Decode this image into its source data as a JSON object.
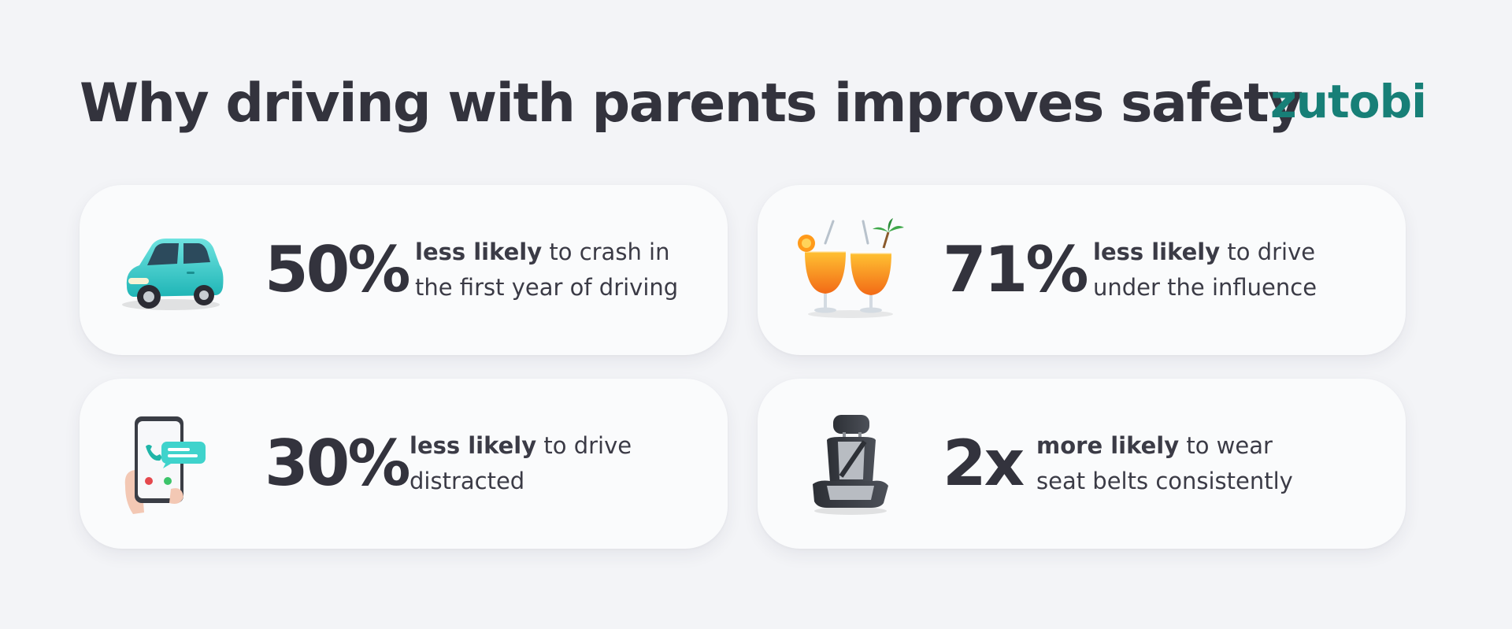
{
  "header": {
    "title": "Why driving with parents improves safety",
    "logo": "zutobi"
  },
  "stats": [
    {
      "icon": "car-icon",
      "value": "50%",
      "emphasis": "less likely",
      "text": " to crash in the first year of driving"
    },
    {
      "icon": "cocktails-icon",
      "value": "71%",
      "emphasis": "less likely",
      "text": " to drive under the influence"
    },
    {
      "icon": "phone-in-hand-icon",
      "value": "30%",
      "emphasis": "less likely",
      "text": " to drive distracted"
    },
    {
      "icon": "car-seat-icon",
      "value": "2x",
      "emphasis": "more likely",
      "text": " to wear seat belts consistently"
    }
  ],
  "colors": {
    "background": "#f3f4f7",
    "card": "#fafbfc",
    "text": "#33333d",
    "brand": "#177f77"
  }
}
